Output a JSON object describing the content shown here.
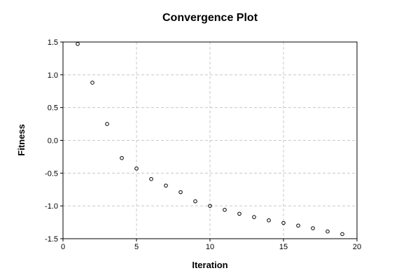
{
  "chart_data": {
    "type": "scatter",
    "title": "Convergence Plot",
    "xlabel": "Iteration",
    "ylabel": "Fitness",
    "xlim": [
      0,
      20
    ],
    "ylim": [
      -1.5,
      1.5
    ],
    "xticks": [
      0,
      5,
      10,
      15,
      20
    ],
    "yticks": [
      1.5,
      1.0,
      0.5,
      0.0,
      -0.5,
      -1.0,
      -1.5
    ],
    "xtick_labels": [
      "0",
      "5",
      "10",
      "15",
      "20"
    ],
    "ytick_labels": [
      "1.5",
      "1.0",
      "0.5",
      "0.0",
      "-0.5",
      "-1.0",
      "-1.5"
    ],
    "grid": true,
    "marker": "open-circle",
    "series": [
      {
        "x": [
          1,
          2,
          3,
          4,
          5,
          6,
          7,
          8,
          9,
          10,
          11,
          12,
          13,
          14,
          15,
          16,
          17,
          18,
          19
        ],
        "y": [
          1.47,
          0.88,
          0.25,
          -0.27,
          -0.43,
          -0.59,
          -0.69,
          -0.79,
          -0.93,
          -1.0,
          -1.06,
          -1.12,
          -1.17,
          -1.22,
          -1.26,
          -1.3,
          -1.34,
          -1.39,
          -1.43
        ]
      }
    ]
  }
}
